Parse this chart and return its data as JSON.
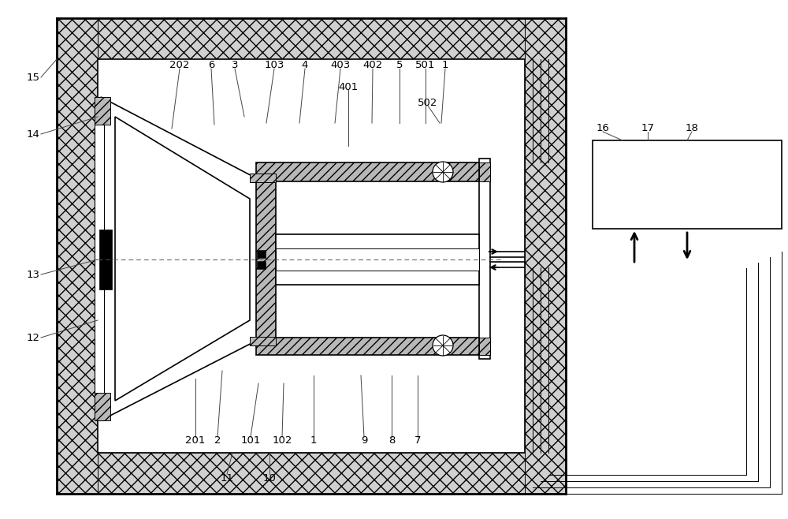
{
  "bg": "#ffffff",
  "lc": "#000000",
  "lw": 1.2,
  "hlw": 0.7,
  "hatch_fc": "#d0d0d0",
  "gray_fc": "#b8b8b8"
}
